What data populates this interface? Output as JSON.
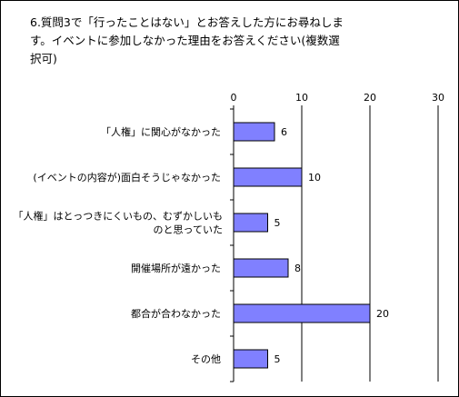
{
  "chart_data": {
    "type": "bar",
    "orientation": "horizontal",
    "title": "6.質問3で「行ったことはない」とお答えした方にお尋ねします。イベントに参加しなかった理由をお答えください(複数選択可)",
    "title_lines": [
      "6.質問3で「行ったことはない」とお答えした方にお尋ねしま",
      "す。イベントに参加しなかった理由をお答えください(複数選",
      "択可)"
    ],
    "categories": [
      [
        "「人権」に関心がなかった"
      ],
      [
        "(イベントの内容が)面白そうじゃなかった"
      ],
      [
        "「人権」はとっつきにくいもの、むずかしいも",
        "のと思っていた"
      ],
      [
        "開催場所が遠かった"
      ],
      [
        "都合が合わなかった"
      ],
      [
        "その他"
      ]
    ],
    "values": [
      6,
      10,
      5,
      8,
      20,
      5
    ],
    "xlim": [
      0,
      30
    ],
    "xticks": [
      0,
      10,
      20,
      30
    ],
    "grid": true,
    "legend": "none",
    "bar_color": "#8080ff",
    "bar_edge_color": "#000000",
    "frame_color": "#000000"
  }
}
